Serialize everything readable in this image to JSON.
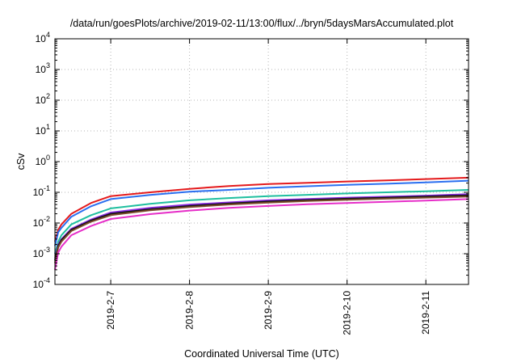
{
  "chart_data": {
    "type": "line",
    "title": "/data/run/goesPlots/archive/2019-02-11/13:00/flux/../bryn/5daysMarsAccumulated.plot",
    "xlabel": "Coordinated Universal Time (UTC)",
    "ylabel": "cSv",
    "y_scale": "log",
    "ylim": [
      0.0001,
      10000
    ],
    "y_ticks": [
      {
        "base": "10",
        "exp": "-4",
        "value": 0.0001
      },
      {
        "base": "10",
        "exp": "-3",
        "value": 0.001
      },
      {
        "base": "10",
        "exp": "-2",
        "value": 0.01
      },
      {
        "base": "10",
        "exp": "-1",
        "value": 0.1
      },
      {
        "base": "10",
        "exp": "0",
        "value": 1
      },
      {
        "base": "10",
        "exp": "1",
        "value": 10
      },
      {
        "base": "10",
        "exp": "2",
        "value": 100
      },
      {
        "base": "10",
        "exp": "3",
        "value": 1000
      },
      {
        "base": "10",
        "exp": "4",
        "value": 10000
      }
    ],
    "xlim": [
      "2019-02-06 07:00",
      "2019-02-11 13:00"
    ],
    "x_ticks": [
      "2019-2-7",
      "2019-2-8",
      "2019-2-9",
      "2019-2-10",
      "2019-2-11"
    ],
    "grid": true,
    "x": [
      "2019-02-06 07:00",
      "2019-02-06 08:00",
      "2019-02-06 09:00",
      "2019-02-06 12:00",
      "2019-02-06 18:00",
      "2019-02-07 00:00",
      "2019-02-07 12:00",
      "2019-02-08 00:00",
      "2019-02-08 12:00",
      "2019-02-09 00:00",
      "2019-02-09 12:00",
      "2019-02-10 00:00",
      "2019-02-10 12:00",
      "2019-02-11 00:00",
      "2019-02-11 13:00"
    ],
    "series": [
      {
        "color": "#e41a1c",
        "values": [
          0.0025,
          0.006,
          0.009,
          0.02,
          0.045,
          0.075,
          0.1,
          0.13,
          0.16,
          0.185,
          0.205,
          0.225,
          0.245,
          0.27,
          0.3
        ]
      },
      {
        "color": "#2a6ff0",
        "values": [
          0.0018,
          0.005,
          0.007,
          0.016,
          0.035,
          0.06,
          0.082,
          0.105,
          0.12,
          0.14,
          0.158,
          0.175,
          0.19,
          0.21,
          0.24
        ]
      },
      {
        "color": "#1fbf9f",
        "values": [
          0.001,
          0.0025,
          0.004,
          0.009,
          0.018,
          0.03,
          0.042,
          0.055,
          0.065,
          0.075,
          0.083,
          0.092,
          0.1,
          0.108,
          0.12
        ]
      },
      {
        "color": "#8a2be2",
        "values": [
          0.0007,
          0.002,
          0.003,
          0.0065,
          0.013,
          0.022,
          0.031,
          0.04,
          0.047,
          0.055,
          0.061,
          0.067,
          0.072,
          0.078,
          0.087
        ]
      },
      {
        "color": "#111111",
        "values": [
          0.0006,
          0.0018,
          0.0028,
          0.006,
          0.012,
          0.02,
          0.028,
          0.036,
          0.043,
          0.05,
          0.056,
          0.062,
          0.067,
          0.073,
          0.08
        ]
      },
      {
        "color": "#7b4a2b",
        "values": [
          0.0005,
          0.0016,
          0.0025,
          0.0055,
          0.011,
          0.018,
          0.026,
          0.033,
          0.04,
          0.046,
          0.052,
          0.057,
          0.062,
          0.067,
          0.073
        ]
      },
      {
        "color": "#e62ec8",
        "values": [
          0.0003,
          0.0011,
          0.0017,
          0.004,
          0.008,
          0.0135,
          0.0195,
          0.0255,
          0.031,
          0.036,
          0.041,
          0.045,
          0.049,
          0.054,
          0.06
        ]
      }
    ]
  }
}
